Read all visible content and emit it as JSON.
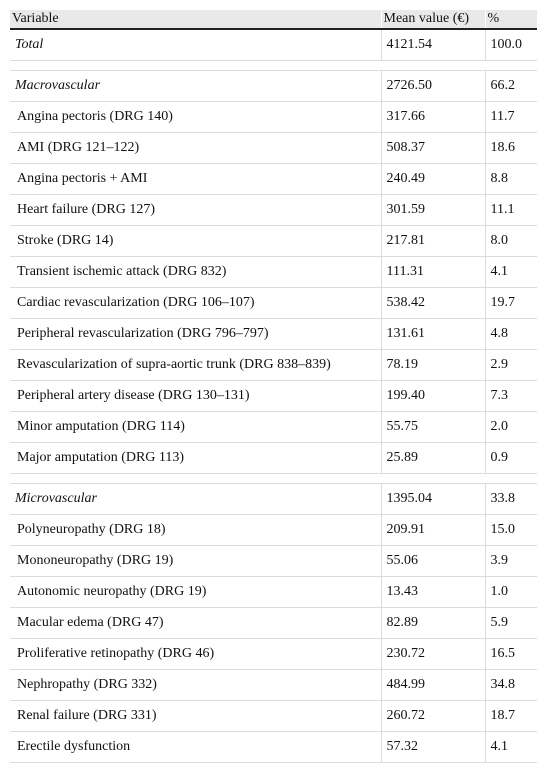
{
  "table": {
    "headers": [
      "Variable",
      "Mean value (€)",
      "%"
    ],
    "total": {
      "label": "Total",
      "mean": "4121.54",
      "pct": "100.0"
    },
    "macro": {
      "label": "Macrovascular",
      "mean": "2726.50",
      "pct": "66.2",
      "rows": [
        {
          "label": "Angina pectoris (DRG 140)",
          "mean": "317.66",
          "pct": "11.7"
        },
        {
          "label": "AMI (DRG 121–122)",
          "mean": "508.37",
          "pct": "18.6"
        },
        {
          "label": "Angina pectoris + AMI",
          "mean": "240.49",
          "pct": "8.8"
        },
        {
          "label": "Heart failure (DRG 127)",
          "mean": "301.59",
          "pct": "11.1"
        },
        {
          "label": "Stroke (DRG 14)",
          "mean": "217.81",
          "pct": "8.0"
        },
        {
          "label": "Transient ischemic attack (DRG 832)",
          "mean": "111.31",
          "pct": "4.1"
        },
        {
          "label": "Cardiac revascularization (DRG 106–107)",
          "mean": "538.42",
          "pct": "19.7"
        },
        {
          "label": "Peripheral revascularization (DRG 796–797)",
          "mean": "131.61",
          "pct": "4.8"
        },
        {
          "label": "Revascularization of supra-aortic trunk (DRG 838–839)",
          "mean": "78.19",
          "pct": "2.9"
        },
        {
          "label": "Peripheral artery disease (DRG 130–131)",
          "mean": "199.40",
          "pct": "7.3"
        },
        {
          "label": "Minor amputation (DRG 114)",
          "mean": "55.75",
          "pct": "2.0"
        },
        {
          "label": "Major amputation (DRG 113)",
          "mean": "25.89",
          "pct": "0.9"
        }
      ]
    },
    "micro": {
      "label": "Microvascular",
      "mean": "1395.04",
      "pct": "33.8",
      "rows": [
        {
          "label": "Polyneuropathy (DRG 18)",
          "mean": "209.91",
          "pct": "15.0"
        },
        {
          "label": "Mononeuropathy (DRG 19)",
          "mean": "55.06",
          "pct": "3.9"
        },
        {
          "label": "Autonomic neuropathy (DRG 19)",
          "mean": "13.43",
          "pct": "1.0"
        },
        {
          "label": "Macular edema (DRG 47)",
          "mean": "82.89",
          "pct": "5.9"
        },
        {
          "label": "Proliferative retinopathy (DRG 46)",
          "mean": "230.72",
          "pct": "16.5"
        },
        {
          "label": "Nephropathy (DRG 332)",
          "mean": "484.99",
          "pct": "34.8"
        },
        {
          "label": "Renal failure (DRG 331)",
          "mean": "260.72",
          "pct": "18.7"
        },
        {
          "label": "Erectile dysfunction",
          "mean": "57.32",
          "pct": "4.1"
        }
      ]
    }
  }
}
